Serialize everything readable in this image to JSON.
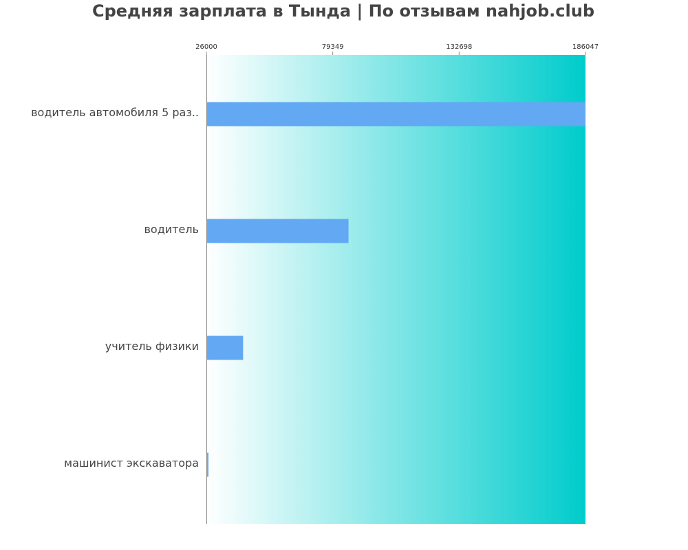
{
  "chart_data": {
    "type": "bar",
    "orientation": "horizontal",
    "title": "Средняя зарплата в Тында | По отзывам nahjob.club",
    "xlabel": "",
    "ylabel": "",
    "categories": [
      "водитель автомобиля 5 раз..",
      "водитель",
      "учитель физики",
      "машинист экскаватора"
    ],
    "values": [
      186047,
      86000,
      41500,
      26700
    ],
    "xlim": [
      26000,
      186047
    ],
    "xticks": [
      "26000",
      "79349",
      "132698",
      "186047"
    ],
    "grid": false,
    "legend": "none",
    "bar_color": "#62a8f2",
    "background_gradient": [
      "#ffffff",
      "#00cccc"
    ],
    "axis_color": "#888888"
  }
}
